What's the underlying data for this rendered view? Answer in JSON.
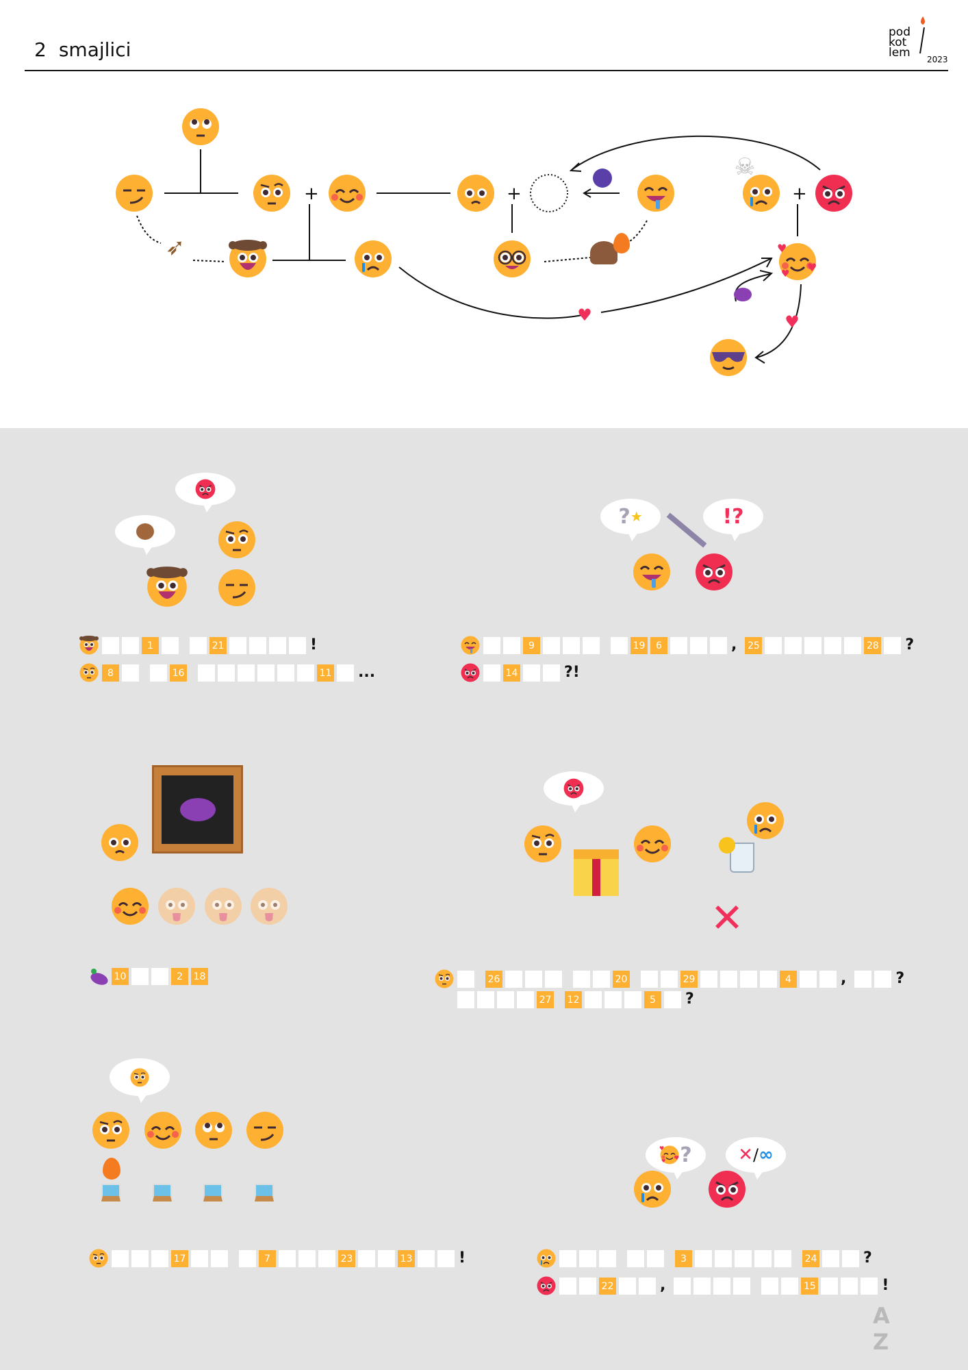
{
  "header": {
    "number": "2",
    "title": "smajlici"
  },
  "logo": {
    "text": "pod kot lem",
    "year": "2023"
  },
  "bubbles": {
    "puzzle2_left": "?",
    "puzzle2_right": "!?",
    "puzzle6_left": "?",
    "puzzle6_right_cross": "✕",
    "puzzle6_right_infinity": "∞",
    "angry_symbols": "#!?"
  },
  "footer_logo": "A Z",
  "colors": {
    "emoji": "#fdb032",
    "angry": "#f02e52",
    "box": "#fdb032",
    "background": "#e3e3e3"
  },
  "puzzles": [
    {
      "speaker": "cowboy-face",
      "words": [
        [
          "",
          "",
          "1",
          ""
        ],
        [
          "",
          "21",
          "",
          "",
          "",
          ""
        ],
        "!"
      ]
    },
    {
      "speaker": "raised-eyebrow-face",
      "words": [
        [
          "8",
          ""
        ],
        [
          "",
          "16"
        ],
        [
          "",
          "",
          "",
          "",
          "",
          "",
          "11",
          ""
        ],
        "..."
      ]
    },
    {
      "speaker": "drooling-face",
      "words": [
        [
          "",
          "",
          "9",
          "",
          "",
          ""
        ],
        [
          "",
          "19",
          "6",
          "",
          "",
          ""
        ],
        ",",
        [
          "25",
          "",
          "",
          "",
          "",
          "",
          "28",
          ""
        ],
        "?"
      ]
    },
    {
      "speaker": "angry-face",
      "words": [
        [
          "",
          "14",
          "",
          ""
        ],
        "?!"
      ]
    },
    {
      "speaker": "eggplant",
      "words": [
        [
          "10",
          "",
          "",
          "2",
          "18"
        ]
      ]
    },
    {
      "speaker": "raised-eyebrow-face",
      "words": [
        [
          ""
        ],
        [
          "26",
          "",
          "",
          ""
        ],
        [
          "",
          "",
          "20"
        ],
        [
          "",
          "",
          "29",
          "",
          "",
          "",
          "",
          "4",
          "",
          ""
        ],
        ",",
        [
          "",
          ""
        ],
        "?"
      ]
    },
    {
      "speaker": null,
      "words": [
        [
          "",
          "",
          "",
          "",
          "27"
        ],
        [
          "12",
          "",
          "",
          "",
          "5",
          ""
        ],
        "?"
      ]
    },
    {
      "speaker": "raised-eyebrow-face",
      "words": [
        [
          "",
          "",
          "",
          "17",
          "",
          ""
        ],
        [
          "",
          "7",
          "",
          "",
          "",
          "23",
          "",
          "",
          "13",
          "",
          ""
        ],
        "!"
      ]
    },
    {
      "speaker": "crying-face",
      "words": [
        [
          "",
          "",
          ""
        ],
        [
          "",
          ""
        ],
        [
          "3",
          "",
          "",
          "",
          "",
          ""
        ],
        [
          "24",
          "",
          ""
        ],
        "?"
      ]
    },
    {
      "speaker": "angry-face",
      "words": [
        [
          "",
          "",
          "22",
          "",
          ""
        ],
        ",",
        [
          "",
          "",
          "",
          ""
        ],
        [
          "",
          "",
          "15",
          "",
          "",
          ""
        ],
        "!"
      ]
    }
  ]
}
